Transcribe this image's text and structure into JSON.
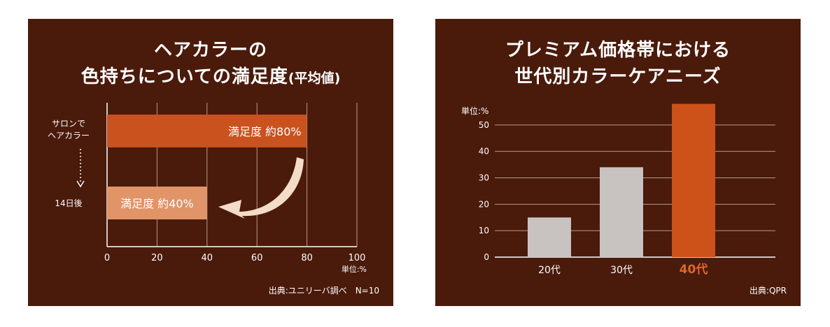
{
  "chart_data": [
    {
      "type": "bar",
      "orientation": "horizontal",
      "title_line1": "ヘアカラーの",
      "title_line2": "色持ちについての満足度",
      "title_suffix": "(平均値)",
      "categories": [
        "サロンで\nヘアカラー",
        "14日後"
      ],
      "values": [
        80,
        40
      ],
      "bar_labels": [
        "満足度 約80%",
        "満足度 約40%"
      ],
      "xlim": [
        0,
        100
      ],
      "xticks": [
        "0",
        "20",
        "40",
        "60",
        "80",
        "100"
      ],
      "unit": "単位:%",
      "source": "出典:ユニリーバ調べ　N=10",
      "grid": true,
      "colors": {
        "bar1": "#c9521f",
        "bar2": "#e09468",
        "arrow": "#f3dcc8"
      }
    },
    {
      "type": "bar",
      "orientation": "vertical",
      "title_line1": "プレミアム価格帯における",
      "title_line2": "世代別カラーケアニーズ",
      "categories": [
        "20代",
        "30代",
        "40代"
      ],
      "values": [
        15,
        34,
        58
      ],
      "ylim": [
        0,
        60
      ],
      "yticks": [
        "0",
        "10",
        "20",
        "30",
        "40",
        "50"
      ],
      "unit": "単位:%",
      "source": "出典:QPR",
      "highlight": "40代",
      "grid": true,
      "colors": {
        "bar": "#c8c3c1",
        "highlight_bar": "#cc5219",
        "highlight_text": "#e0662a"
      }
    }
  ]
}
